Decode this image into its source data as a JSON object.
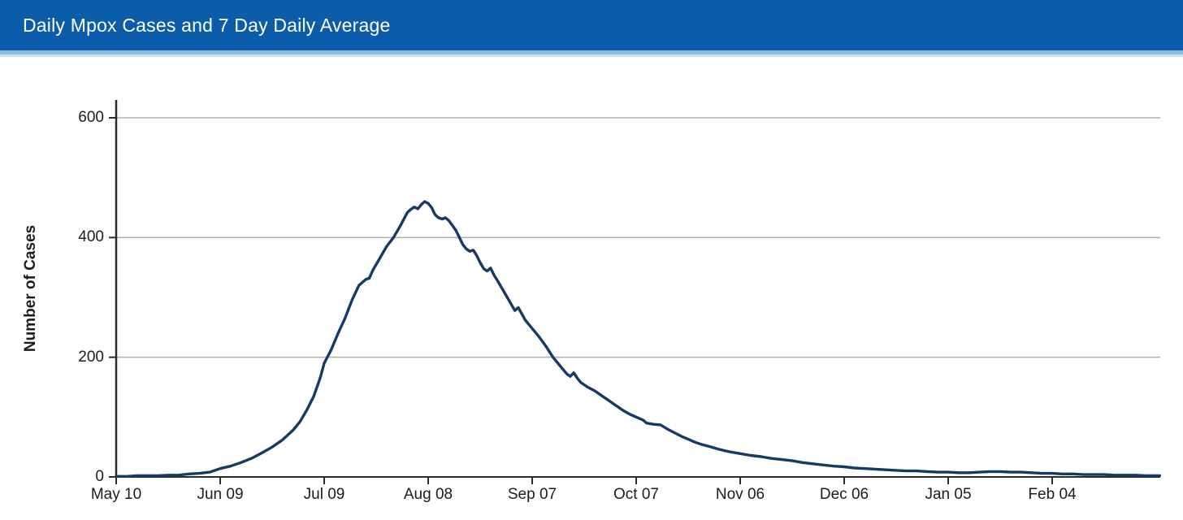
{
  "header": {
    "title": "Daily Mpox Cases and 7 Day Daily Average"
  },
  "colors": {
    "header_bg": "#0b5ca9",
    "stripe_mid_blue": "#8ebde3",
    "stripe_light_blue": "#cde2f4",
    "line": "#163a67",
    "gridline": "#adadad",
    "axis": "#2b2b2b",
    "tick_text": "#1c1c1c"
  },
  "chart_data": {
    "type": "line",
    "title": "Daily Mpox Cases and 7 Day Daily Average",
    "xlabel": "",
    "ylabel": "Number of Cases",
    "ylim": [
      0,
      600
    ],
    "yticks": [
      0,
      200,
      400,
      600
    ],
    "grid": "horizontal-only",
    "legend": "none",
    "x_unit": "days since May 10",
    "xlim_days": [
      0,
      301
    ],
    "x_ticks": [
      {
        "day": 0,
        "label": "May 10"
      },
      {
        "day": 30,
        "label": "Jun 09"
      },
      {
        "day": 60,
        "label": "Jul 09"
      },
      {
        "day": 90,
        "label": "Aug 08"
      },
      {
        "day": 120,
        "label": "Sep 07"
      },
      {
        "day": 150,
        "label": "Oct 07"
      },
      {
        "day": 180,
        "label": "Nov 06"
      },
      {
        "day": 210,
        "label": "Dec 06"
      },
      {
        "day": 240,
        "label": "Jan 05"
      },
      {
        "day": 270,
        "label": "Feb 04"
      }
    ],
    "series": [
      {
        "name": "7 Day Daily Average",
        "color": "#163a67",
        "points": [
          [
            0,
            1
          ],
          [
            3,
            1
          ],
          [
            6,
            2
          ],
          [
            9,
            2
          ],
          [
            12,
            2
          ],
          [
            15,
            3
          ],
          [
            18,
            3
          ],
          [
            21,
            5
          ],
          [
            24,
            6
          ],
          [
            27,
            8
          ],
          [
            30,
            14
          ],
          [
            33,
            18
          ],
          [
            36,
            24
          ],
          [
            39,
            31
          ],
          [
            42,
            40
          ],
          [
            45,
            50
          ],
          [
            48,
            62
          ],
          [
            51,
            78
          ],
          [
            53,
            92
          ],
          [
            55,
            112
          ],
          [
            57,
            135
          ],
          [
            59,
            168
          ],
          [
            60,
            190
          ],
          [
            62,
            212
          ],
          [
            64,
            240
          ],
          [
            66,
            265
          ],
          [
            68,
            295
          ],
          [
            70,
            320
          ],
          [
            72,
            330
          ],
          [
            73,
            332
          ],
          [
            74,
            345
          ],
          [
            76,
            365
          ],
          [
            78,
            385
          ],
          [
            80,
            400
          ],
          [
            82,
            420
          ],
          [
            84,
            442
          ],
          [
            85,
            447
          ],
          [
            86,
            451
          ],
          [
            87,
            448
          ],
          [
            88,
            455
          ],
          [
            89,
            460
          ],
          [
            90,
            457
          ],
          [
            91,
            450
          ],
          [
            92,
            438
          ],
          [
            93,
            433
          ],
          [
            94,
            431
          ],
          [
            95,
            433
          ],
          [
            96,
            428
          ],
          [
            97,
            420
          ],
          [
            98,
            412
          ],
          [
            99,
            400
          ],
          [
            100,
            388
          ],
          [
            101,
            381
          ],
          [
            102,
            377
          ],
          [
            103,
            379
          ],
          [
            104,
            370
          ],
          [
            105,
            358
          ],
          [
            106,
            348
          ],
          [
            107,
            344
          ],
          [
            108,
            349
          ],
          [
            109,
            337
          ],
          [
            110,
            328
          ],
          [
            112,
            308
          ],
          [
            114,
            288
          ],
          [
            115,
            278
          ],
          [
            116,
            283
          ],
          [
            118,
            262
          ],
          [
            120,
            248
          ],
          [
            122,
            234
          ],
          [
            124,
            218
          ],
          [
            126,
            200
          ],
          [
            128,
            186
          ],
          [
            130,
            172
          ],
          [
            131,
            168
          ],
          [
            132,
            174
          ],
          [
            133,
            165
          ],
          [
            134,
            158
          ],
          [
            136,
            150
          ],
          [
            138,
            144
          ],
          [
            140,
            136
          ],
          [
            142,
            128
          ],
          [
            144,
            120
          ],
          [
            146,
            112
          ],
          [
            148,
            105
          ],
          [
            150,
            100
          ],
          [
            152,
            95
          ],
          [
            153,
            90
          ],
          [
            155,
            88
          ],
          [
            157,
            87
          ],
          [
            159,
            80
          ],
          [
            161,
            74
          ],
          [
            163,
            68
          ],
          [
            165,
            63
          ],
          [
            167,
            58
          ],
          [
            169,
            54
          ],
          [
            171,
            51
          ],
          [
            174,
            46
          ],
          [
            177,
            42
          ],
          [
            180,
            39
          ],
          [
            183,
            36
          ],
          [
            186,
            34
          ],
          [
            189,
            31
          ],
          [
            192,
            29
          ],
          [
            195,
            27
          ],
          [
            198,
            24
          ],
          [
            201,
            22
          ],
          [
            204,
            20
          ],
          [
            207,
            18
          ],
          [
            210,
            17
          ],
          [
            213,
            15
          ],
          [
            216,
            14
          ],
          [
            219,
            13
          ],
          [
            222,
            12
          ],
          [
            225,
            11
          ],
          [
            228,
            10
          ],
          [
            231,
            10
          ],
          [
            234,
            9
          ],
          [
            237,
            8
          ],
          [
            240,
            8
          ],
          [
            243,
            7
          ],
          [
            246,
            7
          ],
          [
            249,
            8
          ],
          [
            252,
            9
          ],
          [
            255,
            9
          ],
          [
            258,
            8
          ],
          [
            261,
            8
          ],
          [
            264,
            7
          ],
          [
            267,
            6
          ],
          [
            270,
            6
          ],
          [
            273,
            5
          ],
          [
            276,
            5
          ],
          [
            279,
            4
          ],
          [
            282,
            4
          ],
          [
            285,
            4
          ],
          [
            288,
            3
          ],
          [
            291,
            3
          ],
          [
            294,
            3
          ],
          [
            297,
            2
          ],
          [
            300,
            2
          ],
          [
            301,
            2
          ]
        ]
      }
    ]
  }
}
